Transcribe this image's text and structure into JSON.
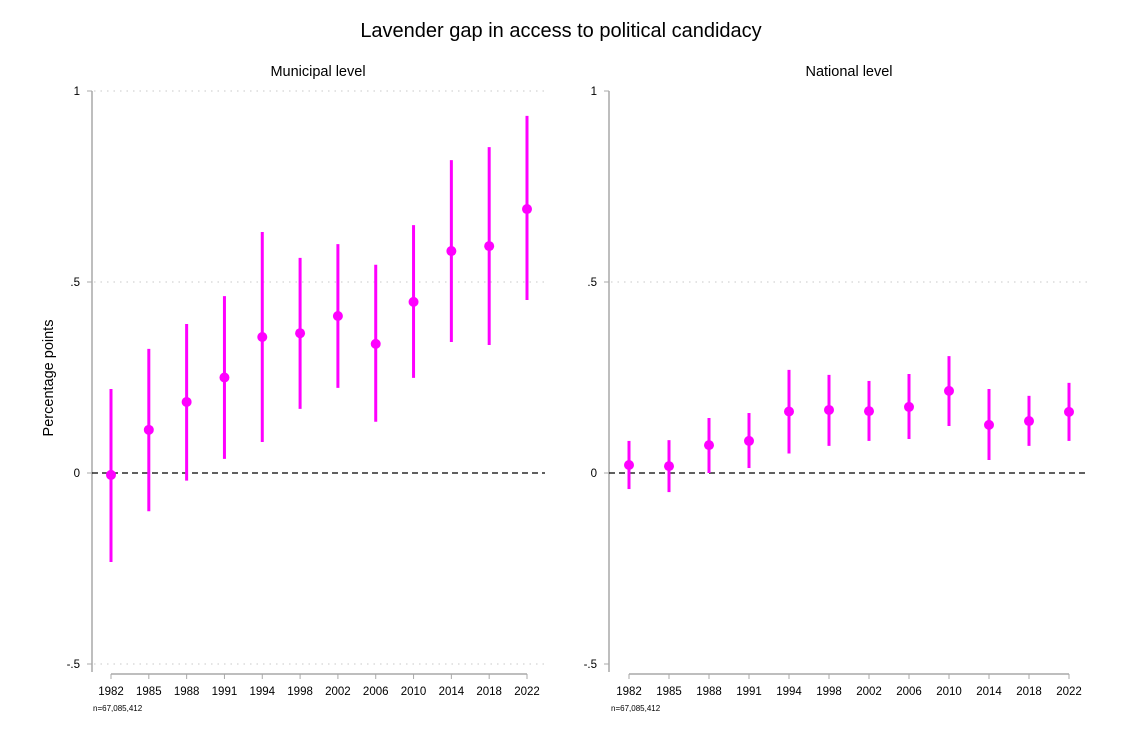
{
  "chart_data": {
    "type": "scatter",
    "title": "Lavender gap in access to political candidacy",
    "ylabel": "Percentage points",
    "marker_color": "#ff00ff",
    "panels": [
      {
        "subtitle": "Municipal level",
        "categories": [
          "1982",
          "1985",
          "1988",
          "1991",
          "1994",
          "1998",
          "2002",
          "2006",
          "2010",
          "2014",
          "2018",
          "2022"
        ],
        "estimate": [
          -0.005,
          0.113,
          0.186,
          0.25,
          0.356,
          0.366,
          0.411,
          0.338,
          0.448,
          0.581,
          0.594,
          0.691
        ],
        "ci_low": [
          -0.233,
          -0.1,
          -0.02,
          0.037,
          0.081,
          0.168,
          0.223,
          0.134,
          0.249,
          0.343,
          0.335,
          0.453
        ],
        "ci_high": [
          0.22,
          0.325,
          0.39,
          0.463,
          0.631,
          0.563,
          0.599,
          0.545,
          0.649,
          0.819,
          0.853,
          0.935
        ],
        "ylim": [
          -0.5,
          1
        ],
        "yticks": [
          {
            "value": -0.5,
            "label": "-.5"
          },
          {
            "value": 0,
            "label": "0"
          },
          {
            "value": 0.5,
            "label": ".5"
          },
          {
            "value": 1,
            "label": "1"
          }
        ],
        "gridlines": [
          -0.5,
          0.5,
          1
        ],
        "reference_line": 0,
        "note": "n=67,085,412"
      },
      {
        "subtitle": "National level",
        "categories": [
          "1982",
          "1985",
          "1988",
          "1991",
          "1994",
          "1998",
          "2002",
          "2006",
          "2010",
          "2014",
          "2018",
          "2022"
        ],
        "estimate": [
          0.021,
          0.018,
          0.073,
          0.084,
          0.161,
          0.165,
          0.162,
          0.173,
          0.215,
          0.126,
          0.136,
          0.16
        ],
        "ci_low": [
          -0.042,
          -0.05,
          0.0,
          0.013,
          0.051,
          0.071,
          0.084,
          0.089,
          0.123,
          0.034,
          0.071,
          0.084
        ],
        "ci_high": [
          0.084,
          0.086,
          0.144,
          0.157,
          0.27,
          0.257,
          0.241,
          0.259,
          0.306,
          0.22,
          0.202,
          0.236
        ],
        "ylim": [
          -0.5,
          1
        ],
        "yticks": [
          {
            "value": -0.5,
            "label": "-.5"
          },
          {
            "value": 0,
            "label": "0"
          },
          {
            "value": 0.5,
            "label": ".5"
          },
          {
            "value": 1,
            "label": "1"
          }
        ],
        "gridlines": [
          0.5
        ],
        "reference_line": 0,
        "note": "n=67,085,412"
      }
    ]
  }
}
